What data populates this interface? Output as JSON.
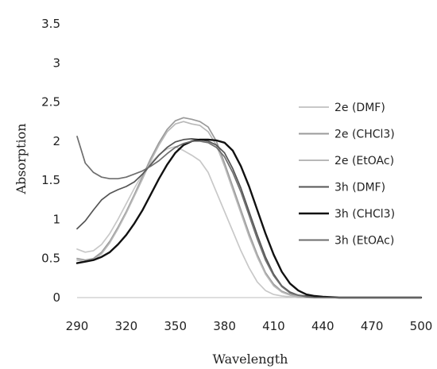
{
  "chart_data": {
    "type": "line",
    "title": "",
    "xlabel": "Wavelength",
    "ylabel": "Absorption",
    "xlim": [
      290,
      500
    ],
    "ylim": [
      0,
      3.5
    ],
    "xticks": [
      "290",
      "320",
      "350",
      "380",
      "410",
      "440",
      "470",
      "500"
    ],
    "yticks": [
      "0",
      "0.5",
      "1",
      "1.5",
      "2",
      "2.5",
      "3",
      "3.5"
    ],
    "grid": false,
    "legend_position": "right",
    "series": [
      {
        "name": "2e (DMF)",
        "color": "#c8c8c8",
        "x": [
          290,
          295,
          300,
          305,
          310,
          315,
          320,
          325,
          330,
          335,
          340,
          345,
          350,
          355,
          360,
          365,
          370,
          375,
          380,
          385,
          390,
          395,
          400,
          405,
          410,
          415,
          420,
          425,
          430,
          440,
          450,
          460,
          470,
          480,
          490,
          500
        ],
        "y": [
          0.62,
          0.58,
          0.6,
          0.68,
          0.82,
          1.0,
          1.2,
          1.4,
          1.58,
          1.72,
          1.83,
          1.9,
          1.93,
          1.88,
          1.82,
          1.75,
          1.6,
          1.35,
          1.1,
          0.85,
          0.6,
          0.38,
          0.2,
          0.09,
          0.04,
          0.02,
          0.01,
          0.0,
          0.0,
          0.0,
          0.0,
          0.0,
          0.0,
          0.0,
          0.0,
          0.0
        ]
      },
      {
        "name": "2e (CHCl3)",
        "color": "#9a9a9a",
        "x": [
          290,
          295,
          300,
          305,
          310,
          315,
          320,
          325,
          330,
          335,
          340,
          345,
          350,
          355,
          360,
          365,
          370,
          375,
          380,
          385,
          390,
          395,
          400,
          405,
          410,
          415,
          420,
          425,
          430,
          440,
          450,
          460,
          470,
          480,
          490,
          500
        ],
        "y": [
          0.5,
          0.48,
          0.5,
          0.58,
          0.72,
          0.9,
          1.1,
          1.32,
          1.55,
          1.78,
          1.98,
          2.15,
          2.26,
          2.3,
          2.28,
          2.25,
          2.18,
          2.0,
          1.72,
          1.42,
          1.12,
          0.82,
          0.55,
          0.32,
          0.17,
          0.08,
          0.04,
          0.02,
          0.01,
          0.0,
          0.0,
          0.0,
          0.0,
          0.0,
          0.0,
          0.0
        ]
      },
      {
        "name": "2e (EtOAc)",
        "color": "#b8b8b8",
        "x": [
          290,
          295,
          300,
          305,
          310,
          315,
          320,
          325,
          330,
          335,
          340,
          345,
          350,
          355,
          360,
          365,
          370,
          375,
          380,
          385,
          390,
          395,
          400,
          405,
          410,
          415,
          420,
          425,
          430,
          440,
          450,
          460,
          470,
          480,
          490,
          500
        ],
        "y": [
          0.48,
          0.46,
          0.48,
          0.56,
          0.7,
          0.88,
          1.08,
          1.3,
          1.52,
          1.75,
          1.95,
          2.12,
          2.22,
          2.25,
          2.22,
          2.2,
          2.12,
          1.95,
          1.68,
          1.38,
          1.08,
          0.78,
          0.52,
          0.3,
          0.15,
          0.07,
          0.03,
          0.01,
          0.0,
          0.0,
          0.0,
          0.0,
          0.0,
          0.0,
          0.0,
          0.0
        ]
      },
      {
        "name": "3h (DMF)",
        "color": "#555555",
        "x": [
          290,
          295,
          300,
          305,
          310,
          315,
          320,
          325,
          330,
          335,
          340,
          345,
          350,
          355,
          360,
          365,
          370,
          375,
          380,
          385,
          390,
          395,
          400,
          405,
          410,
          415,
          420,
          425,
          430,
          435,
          440,
          450,
          460,
          470,
          480,
          490,
          500
        ],
        "y": [
          0.88,
          0.98,
          1.12,
          1.25,
          1.33,
          1.38,
          1.42,
          1.48,
          1.58,
          1.7,
          1.82,
          1.92,
          1.99,
          2.02,
          2.03,
          2.02,
          2.0,
          1.95,
          1.85,
          1.65,
          1.4,
          1.1,
          0.8,
          0.52,
          0.3,
          0.15,
          0.07,
          0.03,
          0.02,
          0.01,
          0.0,
          0.0,
          0.0,
          0.0,
          0.0,
          0.0,
          0.0
        ]
      },
      {
        "name": "3h (CHCl3)",
        "color": "#111111",
        "x": [
          290,
          295,
          300,
          305,
          310,
          315,
          320,
          325,
          330,
          335,
          340,
          345,
          350,
          355,
          360,
          365,
          370,
          375,
          380,
          385,
          390,
          395,
          400,
          405,
          410,
          415,
          420,
          425,
          430,
          435,
          440,
          450,
          460,
          470,
          480,
          490,
          500
        ],
        "y": [
          0.44,
          0.46,
          0.48,
          0.52,
          0.58,
          0.68,
          0.8,
          0.95,
          1.12,
          1.32,
          1.52,
          1.7,
          1.85,
          1.95,
          2.0,
          2.02,
          2.02,
          2.01,
          1.98,
          1.88,
          1.68,
          1.42,
          1.12,
          0.82,
          0.55,
          0.33,
          0.18,
          0.09,
          0.04,
          0.02,
          0.01,
          0.0,
          0.0,
          0.0,
          0.0,
          0.0,
          0.0
        ]
      },
      {
        "name": "3h (EtOAc)",
        "color": "#6e6e6e",
        "x": [
          290,
          295,
          300,
          305,
          310,
          315,
          320,
          325,
          330,
          335,
          340,
          345,
          350,
          355,
          360,
          365,
          370,
          375,
          380,
          385,
          390,
          395,
          400,
          405,
          410,
          415,
          420,
          425,
          430,
          435,
          440,
          450,
          460,
          470,
          480,
          490,
          500
        ],
        "y": [
          2.06,
          1.72,
          1.6,
          1.54,
          1.52,
          1.52,
          1.54,
          1.58,
          1.62,
          1.68,
          1.75,
          1.84,
          1.92,
          1.97,
          2.0,
          2.0,
          1.98,
          1.92,
          1.8,
          1.6,
          1.35,
          1.05,
          0.75,
          0.48,
          0.28,
          0.14,
          0.06,
          0.03,
          0.01,
          0.0,
          0.0,
          0.0,
          0.0,
          0.0,
          0.0,
          0.0,
          0.0
        ]
      }
    ]
  }
}
